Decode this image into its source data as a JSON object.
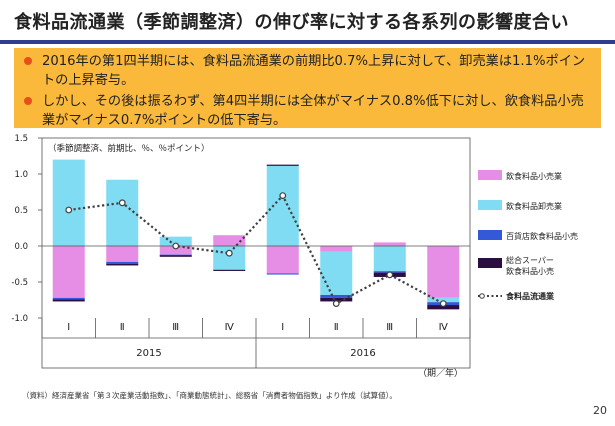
{
  "title": "食料品流通業（季節調整済）の伸び率に対する各系列の影響度合い",
  "summary": [
    "2016年の第1四半期には、食料品流通業の前期比0.7%上昇に対して、卸売業は1.1%ポイントの上昇寄与。",
    "しかし、その後は振るわず、第4四半期には全体がマイナス0.8%低下に対し、飲食料品小売業がマイナス0.7%ポイントの低下寄与。"
  ],
  "source_note": "（資料）経済産業省「第３次産業活動指数」、「商業動態統計」、総務省「消費者物価指数」より作成（試算値）。",
  "page_number": "20",
  "colors": {
    "retail": "#e68ee6",
    "wholesale": "#7fdcf2",
    "dept": "#3359d9",
    "super": "#2b0f40",
    "total": "#404040",
    "accent_bar": "#2e3d8f",
    "summary_bg": "#fbb93c"
  },
  "chart_data": {
    "type": "bar",
    "stacked": true,
    "unit_note": "（季節調整済、前期比、％、％ポイント）",
    "x_unit": "（期／年）",
    "categories": [
      "Ⅰ",
      "Ⅱ",
      "Ⅲ",
      "Ⅳ",
      "Ⅰ",
      "Ⅱ",
      "Ⅲ",
      "Ⅳ"
    ],
    "years": [
      {
        "label": "2015",
        "span": [
          0,
          3
        ]
      },
      {
        "label": "2016",
        "span": [
          4,
          7
        ]
      }
    ],
    "ylim": [
      -1.0,
      1.5
    ],
    "yticks": [
      "1.5",
      "1.0",
      "0.5",
      "0.0",
      "-0.5",
      "-1.0"
    ],
    "ytick_values": [
      1.5,
      1.0,
      0.5,
      0.0,
      -0.5,
      -1.0
    ],
    "series": [
      {
        "name": "飲食料品小売業",
        "kind": "bar",
        "color_key": "retail",
        "values": [
          -0.72,
          -0.22,
          -0.12,
          0.15,
          -0.38,
          -0.08,
          0.05,
          -0.72
        ]
      },
      {
        "name": "飲食料品卸売業",
        "kind": "bar",
        "color_key": "wholesale",
        "values": [
          1.2,
          0.92,
          0.13,
          -0.33,
          1.12,
          -0.6,
          -0.35,
          -0.06
        ]
      },
      {
        "name": "百貨店飲食料品小売",
        "kind": "bar",
        "color_key": "dept",
        "values": [
          -0.02,
          -0.03,
          -0.01,
          0.0,
          -0.01,
          -0.04,
          -0.02,
          -0.04
        ]
      },
      {
        "name": "総合スーパー飲食料品小売",
        "kind": "bar",
        "color_key": "super",
        "values": [
          -0.03,
          -0.02,
          -0.02,
          -0.01,
          0.01,
          -0.05,
          -0.06,
          -0.06
        ]
      },
      {
        "name": "食料品流通業",
        "kind": "line",
        "color_key": "total",
        "values": [
          0.5,
          0.6,
          0.0,
          -0.1,
          0.7,
          -0.8,
          -0.4,
          -0.8
        ]
      }
    ],
    "legend": [
      {
        "label": "飲食料品小売業",
        "color_key": "retail",
        "kind": "bar"
      },
      {
        "label": "飲食料品卸売業",
        "color_key": "wholesale",
        "kind": "bar"
      },
      {
        "label": "百貨店飲食料品小売",
        "color_key": "dept",
        "kind": "bar"
      },
      {
        "label": "総合スーパー",
        "label2": "飲食料品小売",
        "color_key": "super",
        "kind": "bar"
      },
      {
        "label": "食料品流通業",
        "color_key": "total",
        "kind": "line"
      }
    ],
    "legend_position": "right",
    "grid": false
  }
}
